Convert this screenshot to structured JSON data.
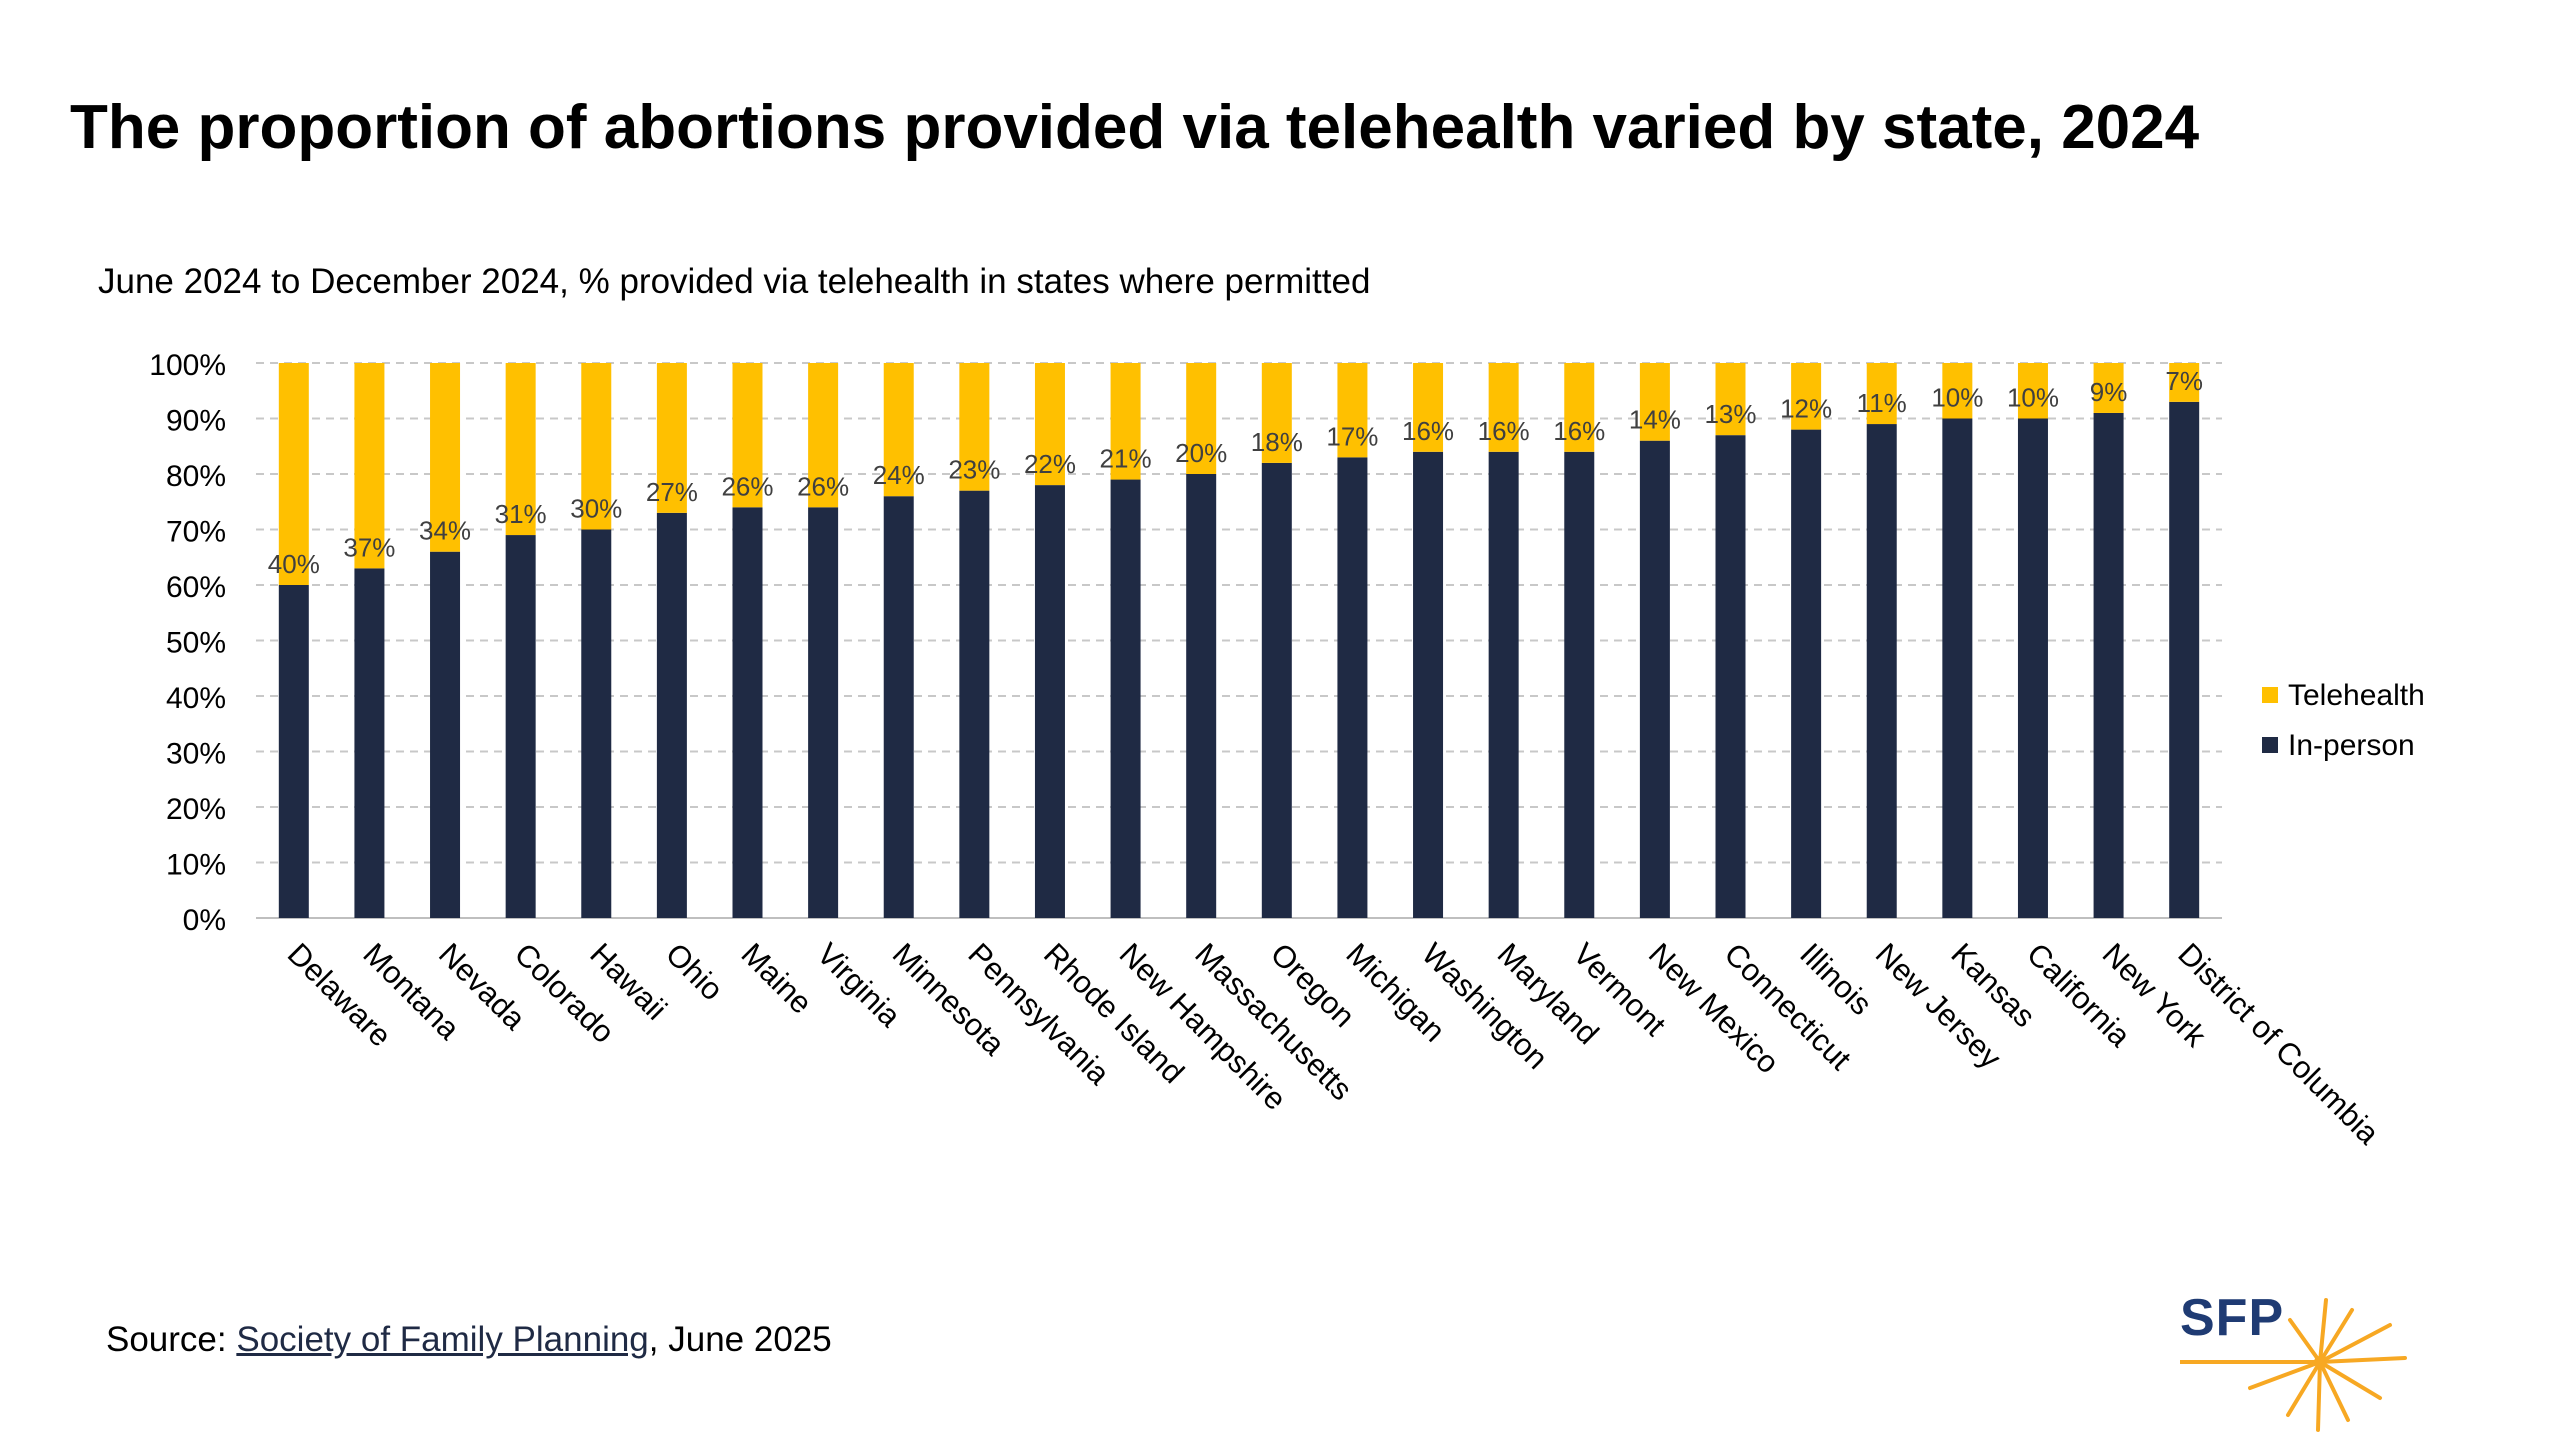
{
  "title": "The proportion of abortions provided via telehealth varied by state, 2024",
  "subtitle": "June 2024 to December 2024, % provided via telehealth in states where permitted",
  "source": {
    "prefix": "Source: ",
    "link_text": "Society of Family Planning",
    "suffix": ", June 2025"
  },
  "logo": {
    "text": "SFP",
    "icon": "sunburst-icon",
    "color": "#1f3b73",
    "burst_color": "#f7a823"
  },
  "colors": {
    "telehealth": "#ffc000",
    "in_person": "#1f2a44",
    "grid": "#c8c8c8",
    "label": "#404040"
  },
  "chart_data": {
    "type": "bar",
    "stacked": true,
    "categories": [
      "Delaware",
      "Montana",
      "Nevada",
      "Colorado",
      "Hawaii",
      "Ohio",
      "Maine",
      "Virginia",
      "Minnesota",
      "Pennsylvania",
      "Rhode Island",
      "New Hampshire",
      "Massachusetts",
      "Oregon",
      "Michigan",
      "Washington",
      "Maryland",
      "Vermont",
      "New Mexico",
      "Connecticut",
      "Illinois",
      "New Jersey",
      "Kansas",
      "California",
      "New York",
      "District of Columbia"
    ],
    "series": [
      {
        "name": "In-person",
        "color": "#1f2a44",
        "values": [
          60,
          63,
          66,
          69,
          70,
          73,
          74,
          74,
          76,
          77,
          78,
          79,
          80,
          82,
          83,
          84,
          84,
          84,
          86,
          87,
          88,
          89,
          90,
          90,
          91,
          93
        ]
      },
      {
        "name": "Telehealth",
        "color": "#ffc000",
        "values": [
          40,
          37,
          34,
          31,
          30,
          27,
          26,
          26,
          24,
          23,
          22,
          21,
          20,
          18,
          17,
          16,
          16,
          16,
          14,
          13,
          12,
          11,
          10,
          10,
          9,
          7
        ]
      }
    ],
    "data_labels": [
      "40%",
      "37%",
      "34%",
      "31%",
      "30%",
      "27%",
      "26%",
      "26%",
      "24%",
      "23%",
      "22%",
      "21%",
      "20%",
      "18%",
      "17%",
      "16%",
      "16%",
      "16%",
      "14%",
      "13%",
      "12%",
      "11%",
      "10%",
      "10%",
      "9%",
      "7%"
    ],
    "yticks": [
      "0%",
      "10%",
      "20%",
      "30%",
      "40%",
      "50%",
      "60%",
      "70%",
      "80%",
      "90%",
      "100%"
    ],
    "ylim": [
      0,
      100
    ],
    "grid": true,
    "legend": {
      "position": "right",
      "entries": [
        "Telehealth",
        "In-person"
      ]
    }
  }
}
